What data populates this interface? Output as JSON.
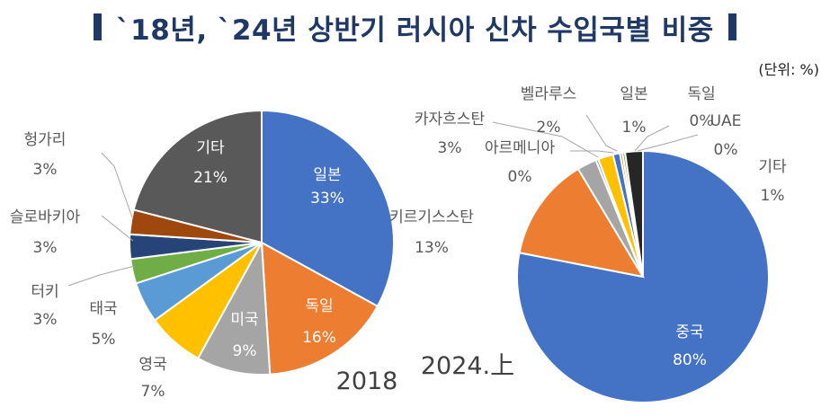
{
  "title": "`18년, `24년 상반기 러시아 신차 수입국별 비중",
  "unit": "(단위: %)",
  "colors": {
    "title": "#1f3864",
    "japan": "#4472c4",
    "germany": "#ed7d31",
    "usa": "#a5a5a5",
    "uk": "#ffc000",
    "thailand": "#5b9bd5",
    "turkey": "#70ad47",
    "slovakia": "#264478",
    "hungary": "#9e480e",
    "other2018": "#595959",
    "china": "#4472c4",
    "kyrgyzstan": "#ed7d31",
    "kazakhstan": "#a5a5a5",
    "belarus": "#ffc000",
    "armenia": "#5b9bd5",
    "uae": "#70ad47",
    "other2024": "#262626"
  },
  "chart_data": [
    {
      "type": "pie",
      "caption": "2018",
      "slices": [
        {
          "name": "일본",
          "value": 33,
          "label": "33%"
        },
        {
          "name": "독일",
          "value": 16,
          "label": "16%"
        },
        {
          "name": "미국",
          "value": 9,
          "label": "9%"
        },
        {
          "name": "영국",
          "value": 7,
          "label": "7%"
        },
        {
          "name": "태국",
          "value": 5,
          "label": "5%"
        },
        {
          "name": "터키",
          "value": 3,
          "label": "3%"
        },
        {
          "name": "슬로바키아",
          "value": 3,
          "label": "3%"
        },
        {
          "name": "헝가리",
          "value": 3,
          "label": "3%"
        },
        {
          "name": "기타",
          "value": 21,
          "label": "21%"
        }
      ]
    },
    {
      "type": "pie",
      "caption": "2024.上",
      "slices": [
        {
          "name": "중국",
          "value": 80,
          "label": "80%"
        },
        {
          "name": "키르기스스탄",
          "value": 13,
          "label": "13%"
        },
        {
          "name": "카자흐스탄",
          "value": 3,
          "label": "3%"
        },
        {
          "name": "아르메니아",
          "value": 0,
          "label": "0%"
        },
        {
          "name": "벨라루스",
          "value": 2,
          "label": "2%"
        },
        {
          "name": "일본",
          "value": 1,
          "label": "1%"
        },
        {
          "name": "독일",
          "value": 0,
          "label": "0%"
        },
        {
          "name": "UAE",
          "value": 0,
          "label": "0%"
        },
        {
          "name": "기타",
          "value": 1,
          "label": "1%"
        }
      ]
    }
  ]
}
